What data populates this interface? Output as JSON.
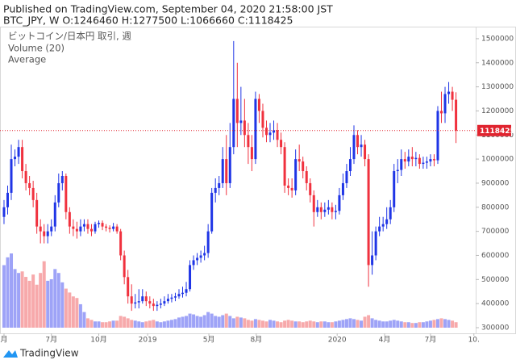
{
  "chart_data": {
    "type": "candlestick",
    "title": "Published on TradingView.com, September 04, 2020 21:58:00 JST",
    "subtitle": "BTC_JPY, W O:1246460 H:1277500 L:1066660 C:1118425",
    "legend": [
      "ビットコイン/日本円 取引, 週",
      "Volume (20)",
      "Average"
    ],
    "brand": "TradingView",
    "up_color": "#1f35e6",
    "down_color": "#f0313e",
    "up_volume_color": "#9ea3f7",
    "down_volume_color": "#f7a9ab",
    "price_line_color": "#e0242f",
    "ylim": [
      276500,
      1550000
    ],
    "yticks": [
      300000,
      400000,
      500000,
      600000,
      700000,
      800000,
      900000,
      1000000,
      1100000,
      1200000,
      1300000,
      1400000,
      1500000
    ],
    "xlim": [
      -1.1,
      129.4
    ],
    "xticks": [
      {
        "value": 0,
        "label": "月"
      },
      {
        "value": 13,
        "label": "7月"
      },
      {
        "value": 26,
        "label": "10月"
      },
      {
        "value": 39.4,
        "label": "2019"
      },
      {
        "value": 56.2,
        "label": "5月"
      },
      {
        "value": 69.2,
        "label": "8月"
      },
      {
        "value": 91.4,
        "label": "2020"
      },
      {
        "value": 104.4,
        "label": "4月"
      },
      {
        "value": 117,
        "label": "7月"
      },
      {
        "value": 128.9,
        "label": "10."
      }
    ],
    "candles": [
      [
        760000,
        830000,
        730000,
        800000
      ],
      [
        800000,
        890000,
        770000,
        860000
      ],
      [
        860000,
        1060000,
        830000,
        1000000
      ],
      [
        1000000,
        1040000,
        970000,
        1010000
      ],
      [
        1010000,
        1080000,
        980000,
        1050000
      ],
      [
        1050000,
        1080000,
        920000,
        950000
      ],
      [
        950000,
        980000,
        870000,
        900000
      ],
      [
        900000,
        930000,
        850000,
        880000
      ],
      [
        880000,
        910000,
        800000,
        830000
      ],
      [
        830000,
        860000,
        690000,
        720000
      ],
      [
        720000,
        750000,
        650000,
        700000
      ],
      [
        700000,
        730000,
        650000,
        680000
      ],
      [
        680000,
        730000,
        650000,
        700000
      ],
      [
        700000,
        750000,
        680000,
        720000
      ],
      [
        720000,
        850000,
        700000,
        820000
      ],
      [
        820000,
        940000,
        800000,
        900000
      ],
      [
        900000,
        950000,
        870000,
        930000
      ],
      [
        930000,
        940000,
        750000,
        780000
      ],
      [
        780000,
        800000,
        690000,
        720000
      ],
      [
        720000,
        750000,
        680000,
        710000
      ],
      [
        710000,
        740000,
        670000,
        700000
      ],
      [
        700000,
        750000,
        680000,
        720000
      ],
      [
        720000,
        750000,
        700000,
        730000
      ],
      [
        730000,
        750000,
        690000,
        710000
      ],
      [
        710000,
        730000,
        680000,
        700000
      ],
      [
        700000,
        740000,
        690000,
        730000
      ],
      [
        730000,
        745000,
        715000,
        735000
      ],
      [
        735000,
        745000,
        705000,
        720000
      ],
      [
        720000,
        730000,
        700000,
        715000
      ],
      [
        715000,
        725000,
        695000,
        710000
      ],
      [
        710000,
        735000,
        700000,
        720000
      ],
      [
        720000,
        730000,
        690000,
        700000
      ],
      [
        700000,
        710000,
        580000,
        600000
      ],
      [
        600000,
        620000,
        480000,
        510000
      ],
      [
        510000,
        540000,
        400000,
        430000
      ],
      [
        430000,
        480000,
        370000,
        400000
      ],
      [
        400000,
        440000,
        380000,
        405000
      ],
      [
        405000,
        460000,
        380000,
        410000
      ],
      [
        410000,
        460000,
        400000,
        430000
      ],
      [
        430000,
        450000,
        390000,
        410000
      ],
      [
        410000,
        430000,
        380000,
        400000
      ],
      [
        400000,
        420000,
        370000,
        390000
      ],
      [
        390000,
        410000,
        370000,
        395000
      ],
      [
        395000,
        420000,
        380000,
        400000
      ],
      [
        400000,
        430000,
        390000,
        410000
      ],
      [
        410000,
        440000,
        400000,
        420000
      ],
      [
        420000,
        440000,
        405000,
        425000
      ],
      [
        425000,
        445000,
        410000,
        430000
      ],
      [
        430000,
        460000,
        420000,
        440000
      ],
      [
        440000,
        470000,
        425000,
        445000
      ],
      [
        445000,
        490000,
        430000,
        460000
      ],
      [
        460000,
        580000,
        450000,
        560000
      ],
      [
        560000,
        600000,
        540000,
        580000
      ],
      [
        580000,
        610000,
        560000,
        590000
      ],
      [
        590000,
        620000,
        570000,
        600000
      ],
      [
        600000,
        640000,
        580000,
        610000
      ],
      [
        610000,
        730000,
        590000,
        700000
      ],
      [
        700000,
        880000,
        690000,
        860000
      ],
      [
        860000,
        920000,
        820000,
        880000
      ],
      [
        880000,
        930000,
        850000,
        900000
      ],
      [
        900000,
        1050000,
        880000,
        1000000
      ],
      [
        1000000,
        1100000,
        850000,
        900000
      ],
      [
        900000,
        1150000,
        880000,
        1050000
      ],
      [
        1050000,
        1490000,
        1020000,
        1250000
      ],
      [
        1250000,
        1400000,
        1050000,
        1150000
      ],
      [
        1150000,
        1300000,
        1100000,
        1160000
      ],
      [
        1160000,
        1250000,
        1050000,
        1100000
      ],
      [
        1100000,
        1150000,
        980000,
        1050000
      ],
      [
        1050000,
        1100000,
        950000,
        1000000
      ],
      [
        1000000,
        1280000,
        980000,
        1250000
      ],
      [
        1250000,
        1270000,
        1150000,
        1200000
      ],
      [
        1200000,
        1230000,
        1090000,
        1130000
      ],
      [
        1130000,
        1160000,
        1070000,
        1100000
      ],
      [
        1100000,
        1150000,
        1070000,
        1110000
      ],
      [
        1110000,
        1160000,
        1080000,
        1120000
      ],
      [
        1120000,
        1150000,
        1050000,
        1080000
      ],
      [
        1080000,
        1110000,
        1020000,
        1050000
      ],
      [
        1050000,
        1070000,
        860000,
        890000
      ],
      [
        890000,
        920000,
        850000,
        880000
      ],
      [
        880000,
        920000,
        840000,
        870000
      ],
      [
        870000,
        1040000,
        850000,
        1000000
      ],
      [
        1000000,
        1060000,
        950000,
        990000
      ],
      [
        990000,
        1010000,
        920000,
        950000
      ],
      [
        950000,
        970000,
        870000,
        900000
      ],
      [
        900000,
        920000,
        820000,
        850000
      ],
      [
        850000,
        870000,
        720000,
        780000
      ],
      [
        780000,
        830000,
        760000,
        800000
      ],
      [
        800000,
        820000,
        750000,
        780000
      ],
      [
        780000,
        820000,
        760000,
        790000
      ],
      [
        790000,
        830000,
        770000,
        800000
      ],
      [
        800000,
        820000,
        750000,
        780000
      ],
      [
        780000,
        810000,
        750000,
        785000
      ],
      [
        785000,
        880000,
        770000,
        850000
      ],
      [
        850000,
        940000,
        830000,
        900000
      ],
      [
        900000,
        980000,
        880000,
        950000
      ],
      [
        950000,
        1050000,
        930000,
        1000000
      ],
      [
        1000000,
        1140000,
        980000,
        1100000
      ],
      [
        1100000,
        1120000,
        1020000,
        1050000
      ],
      [
        1050000,
        1100000,
        1010000,
        1060000
      ],
      [
        1060000,
        1080000,
        970000,
        1000000
      ],
      [
        1000000,
        1020000,
        470000,
        560000
      ],
      [
        560000,
        700000,
        520000,
        600000
      ],
      [
        600000,
        720000,
        580000,
        700000
      ],
      [
        700000,
        760000,
        680000,
        720000
      ],
      [
        720000,
        760000,
        700000,
        730000
      ],
      [
        730000,
        800000,
        710000,
        750000
      ],
      [
        750000,
        830000,
        730000,
        800000
      ],
      [
        800000,
        980000,
        780000,
        950000
      ],
      [
        950000,
        1000000,
        900000,
        955000
      ],
      [
        955000,
        1040000,
        930000,
        1000000
      ],
      [
        1000000,
        1030000,
        960000,
        990000
      ],
      [
        990000,
        1040000,
        970000,
        1010000
      ],
      [
        1010000,
        1050000,
        970000,
        1000000
      ],
      [
        1000000,
        1030000,
        970000,
        1005000
      ],
      [
        1005000,
        1020000,
        960000,
        980000
      ],
      [
        980000,
        1010000,
        960000,
        985000
      ],
      [
        985000,
        1010000,
        960000,
        990000
      ],
      [
        990000,
        1020000,
        970000,
        1000000
      ],
      [
        1000000,
        1020000,
        970000,
        995000
      ],
      [
        995000,
        1220000,
        980000,
        1200000
      ],
      [
        1200000,
        1280000,
        1150000,
        1190000
      ],
      [
        1190000,
        1300000,
        1150000,
        1270000
      ],
      [
        1270000,
        1320000,
        1230000,
        1280000
      ],
      [
        1280000,
        1300000,
        1200000,
        1246460
      ],
      [
        1246460,
        1277500,
        1066660,
        1118425
      ]
    ],
    "volume": [
      80,
      90,
      95,
      75,
      70,
      72,
      65,
      60,
      68,
      55,
      70,
      85,
      60,
      62,
      75,
      70,
      58,
      50,
      45,
      40,
      38,
      30,
      20,
      12,
      10,
      8,
      8,
      7,
      7,
      8,
      9,
      9,
      15,
      14,
      12,
      10,
      9,
      8,
      7,
      8,
      9,
      10,
      8,
      7,
      8,
      9,
      10,
      11,
      13,
      14,
      15,
      18,
      17,
      15,
      14,
      16,
      20,
      18,
      15,
      14,
      16,
      18,
      15,
      12,
      14,
      13,
      12,
      10,
      9,
      11,
      10,
      9,
      8,
      10,
      9,
      8,
      7,
      9,
      10,
      9,
      8,
      8,
      7,
      8,
      9,
      8,
      7,
      8,
      8,
      7,
      7,
      8,
      9,
      10,
      11,
      12,
      11,
      10,
      9,
      14,
      16,
      12,
      10,
      9,
      8,
      8,
      9,
      10,
      9,
      8,
      7,
      7,
      6,
      6,
      7,
      7,
      8,
      9,
      10,
      11,
      12,
      11,
      10,
      9,
      7
    ]
  }
}
